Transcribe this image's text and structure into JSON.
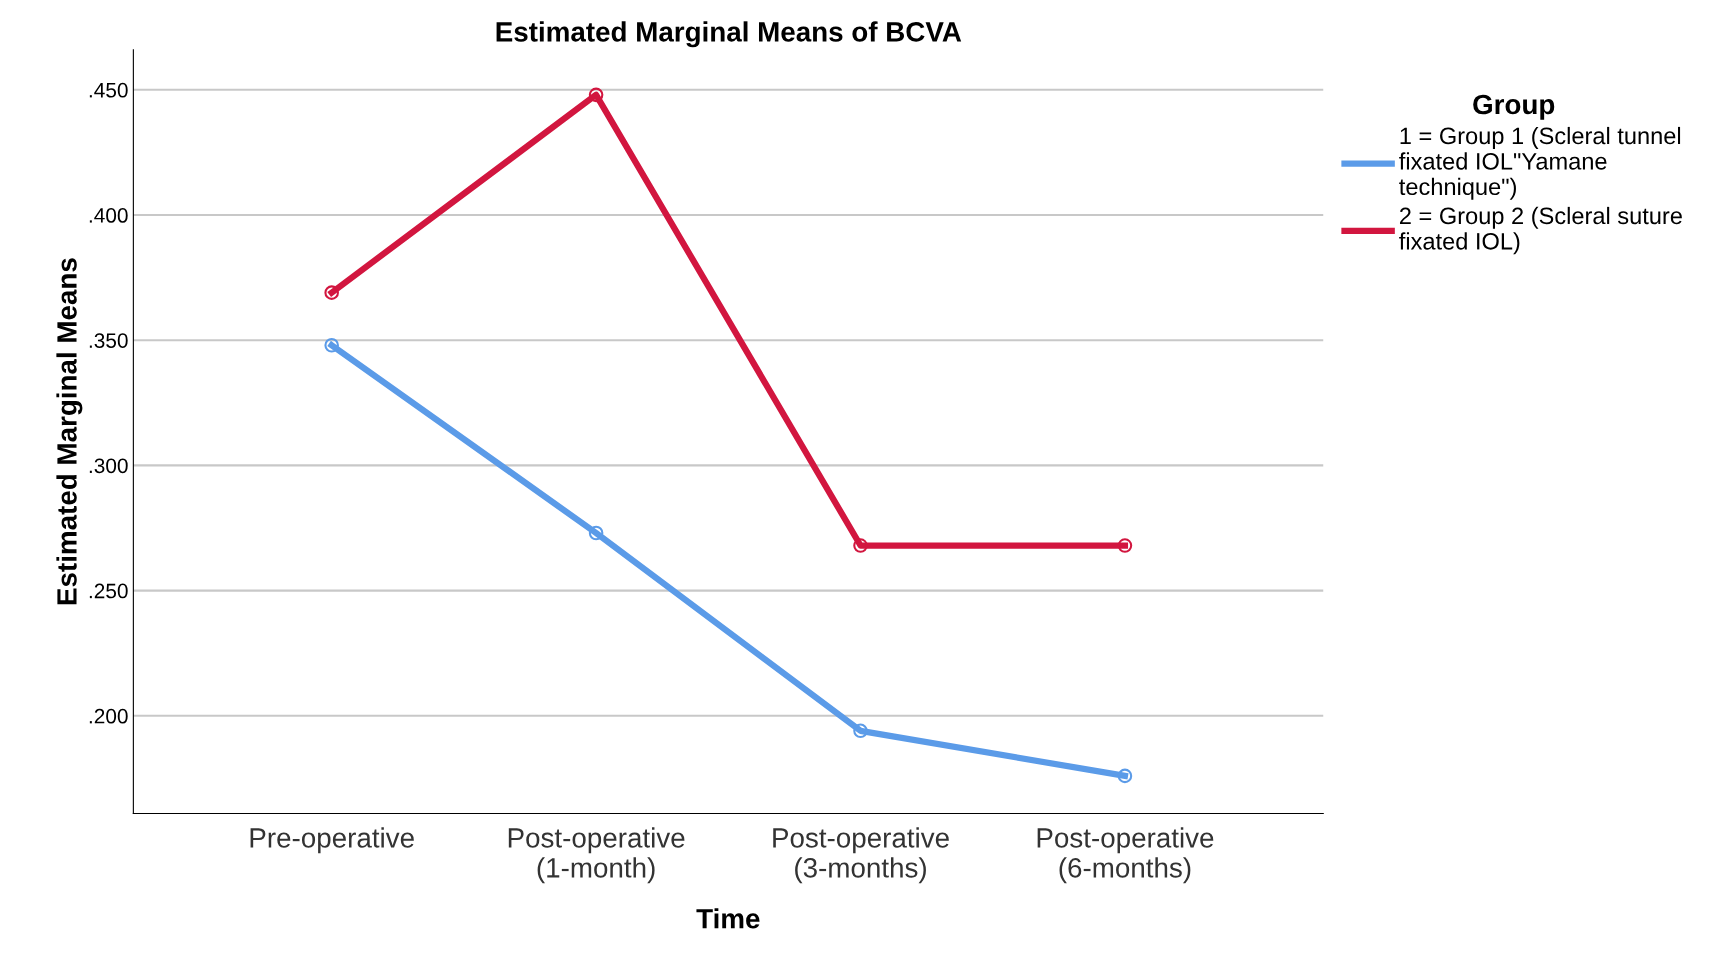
{
  "chart_data": {
    "type": "line",
    "title": "Estimated Marginal Means of BCVA",
    "xlabel": "Time",
    "ylabel": "Estimated Marginal Means",
    "legend_title": "Group",
    "categories": [
      "Pre-operative",
      "Post-operative\n(1-month)",
      "Post-operative\n(3-months)",
      "Post-operative\n(6-months)"
    ],
    "series": [
      {
        "name": "1 = Group 1 (Scleral tunnel\nfixated IOL\"Yamane\ntechnique\")",
        "color": "#5b9be8",
        "values": [
          0.348,
          0.273,
          0.194,
          0.176
        ]
      },
      {
        "name": "2 = Group 2 (Scleral suture\nfixated IOL)",
        "color": "#d2163f",
        "values": [
          0.369,
          0.448,
          0.268,
          0.268
        ]
      }
    ],
    "ylim": [
      0.161,
      0.466
    ],
    "yticks": [
      {
        "value": 0.2,
        "label": ".200"
      },
      {
        "value": 0.25,
        "label": ".250"
      },
      {
        "value": 0.3,
        "label": ".300"
      },
      {
        "value": 0.35,
        "label": ".350"
      },
      {
        "value": 0.4,
        "label": ".400"
      },
      {
        "value": 0.45,
        "label": ".450"
      }
    ],
    "grid": "y",
    "legend": "right",
    "marker": "circle",
    "line_style": "solid"
  }
}
